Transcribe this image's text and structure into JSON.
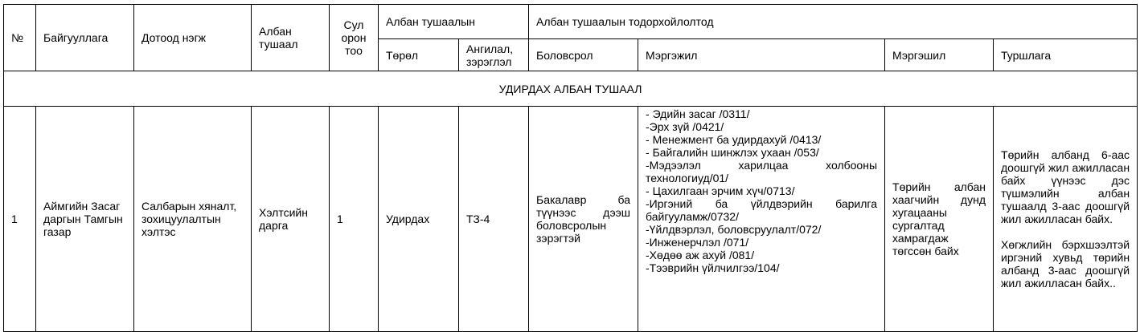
{
  "headers": {
    "no": "№",
    "organization": "Байгууллага",
    "unit": "Дотоод нэгж",
    "position": "Албан тушаал",
    "vacancies": "Сул орон тоо",
    "position_group": "Албан тушаалын",
    "type": "Төрөл",
    "rank": "Ангилал, зэрэглэл",
    "requirements_group": "Албан тушаалын тодорхойлолтод",
    "education": "Боловсрол",
    "profession": "Мэргэжил",
    "qualification": "Мэргэшил",
    "experience": "Туршлага"
  },
  "section_title": "УДИРДАХ АЛБАН ТУШААЛ",
  "rows": [
    {
      "no": "1",
      "organization": "Аймгийн Засаг даргын Тамгын газар",
      "unit": "Салбарын хяналт, зохицуулалтын хэлтэс",
      "position": "Хэлтсийн дарга",
      "vacancies": "1",
      "type": "Удирдах",
      "rank": "ТЗ-4",
      "education": "Бакалавр ба түүнээс дээш боловсролын зэрэгтэй",
      "professions": [
        "- Эдийн засаг /0311/",
        "-Эрх зүй /0421/",
        "- Менежмент ба удирдахуй /0413/",
        "- Байгалийн шинжлэх ухаан /053/",
        "-Мэдээлэл харилцаа холбооны технологиуд/01/",
        "- Цахилгаан эрчим хүч/0713/",
        "-Иргэний ба үйлдвэрийн барилга байгууламж/0732/",
        "-Үйлдвэрлэл, боловсруулалт/072/",
        "-Инженерчлэл /071/",
        "-Хөдөө аж ахуй /081/",
        "-Тээврийн үйлчилгээ/104/"
      ],
      "qualification": "Төрийн албан хаагчийн дунд хугацааны сургалтад хамрагдаж төгссөн байх",
      "experience": [
        "Төрийн албанд 6-аас доошгүй жил ажилласан байх үүнээс дэс түшмэлийн албан тушаалд 3-аас доошгүй жил ажилласан байх.",
        "Хөгжлийн бэрхшээлтэй иргэний хувьд төрийн албанд 3-аас доошгүй жил ажилласан байх.."
      ]
    }
  ]
}
